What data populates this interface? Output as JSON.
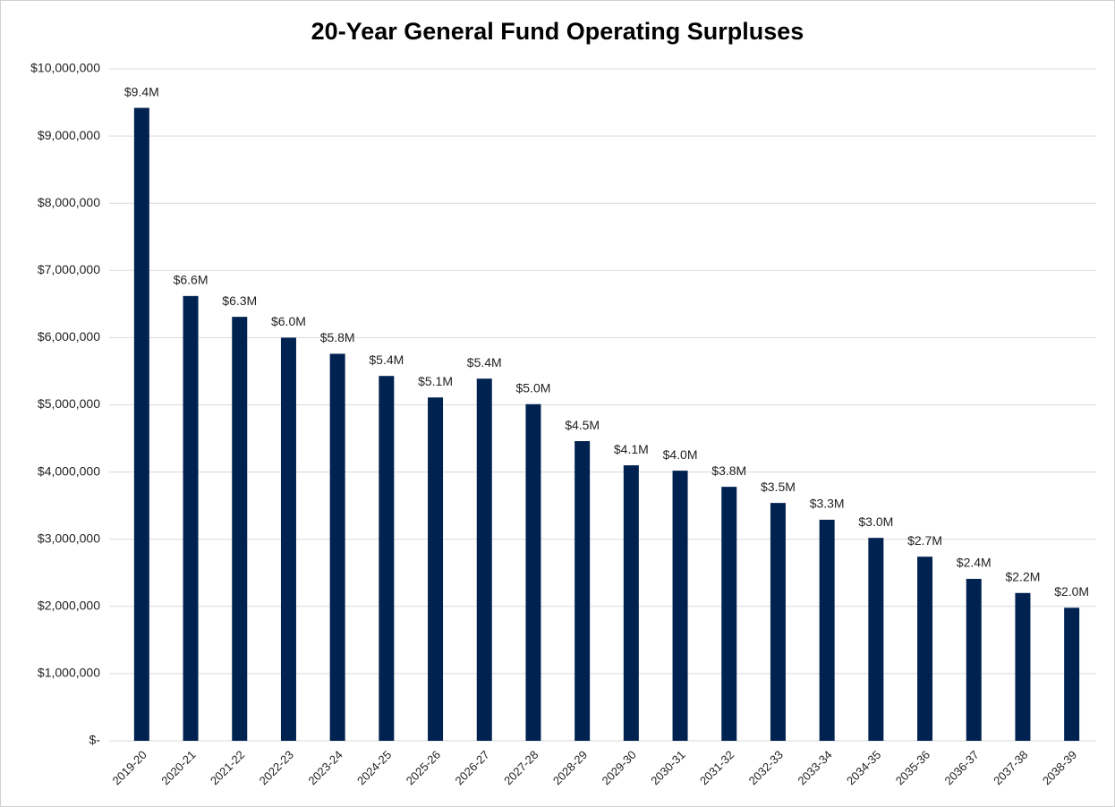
{
  "chart_data": {
    "type": "bar",
    "title": "20-Year General Fund Operating Surpluses",
    "categories": [
      "2019-20",
      "2020-21",
      "2021-22",
      "2022-23",
      "2023-24",
      "2024-25",
      "2025-26",
      "2026-27",
      "2027-28",
      "2028-29",
      "2029-30",
      "2030-31",
      "2031-32",
      "2032-33",
      "2033-34",
      "2034-35",
      "2035-36",
      "2036-37",
      "2037-38",
      "2038-39"
    ],
    "values": [
      9420000,
      6620000,
      6310000,
      6000000,
      5760000,
      5430000,
      5110000,
      5390000,
      5010000,
      4460000,
      4100000,
      4020000,
      3780000,
      3540000,
      3290000,
      3020000,
      2740000,
      2410000,
      2200000,
      1980000
    ],
    "value_labels": [
      "$9.4M",
      "$6.6M",
      "$6.3M",
      "$6.0M",
      "$5.8M",
      "$5.4M",
      "$5.1M",
      "$5.4M",
      "$5.0M",
      "$4.5M",
      "$4.1M",
      "$4.0M",
      "$3.8M",
      "$3.5M",
      "$3.3M",
      "$3.0M",
      "$2.7M",
      "$2.4M",
      "$2.2M",
      "$2.0M"
    ],
    "color": "#002250",
    "ylim": [
      0,
      10000000
    ],
    "yticks": [
      {
        "value": 0,
        "label": "$-"
      },
      {
        "value": 1000000,
        "label": "$1,000,000"
      },
      {
        "value": 2000000,
        "label": "$2,000,000"
      },
      {
        "value": 3000000,
        "label": "$3,000,000"
      },
      {
        "value": 4000000,
        "label": "$4,000,000"
      },
      {
        "value": 5000000,
        "label": "$5,000,000"
      },
      {
        "value": 6000000,
        "label": "$6,000,000"
      },
      {
        "value": 7000000,
        "label": "$7,000,000"
      },
      {
        "value": 8000000,
        "label": "$8,000,000"
      },
      {
        "value": 9000000,
        "label": "$9,000,000"
      },
      {
        "value": 10000000,
        "label": "$10,000,000"
      }
    ],
    "grid": true
  }
}
